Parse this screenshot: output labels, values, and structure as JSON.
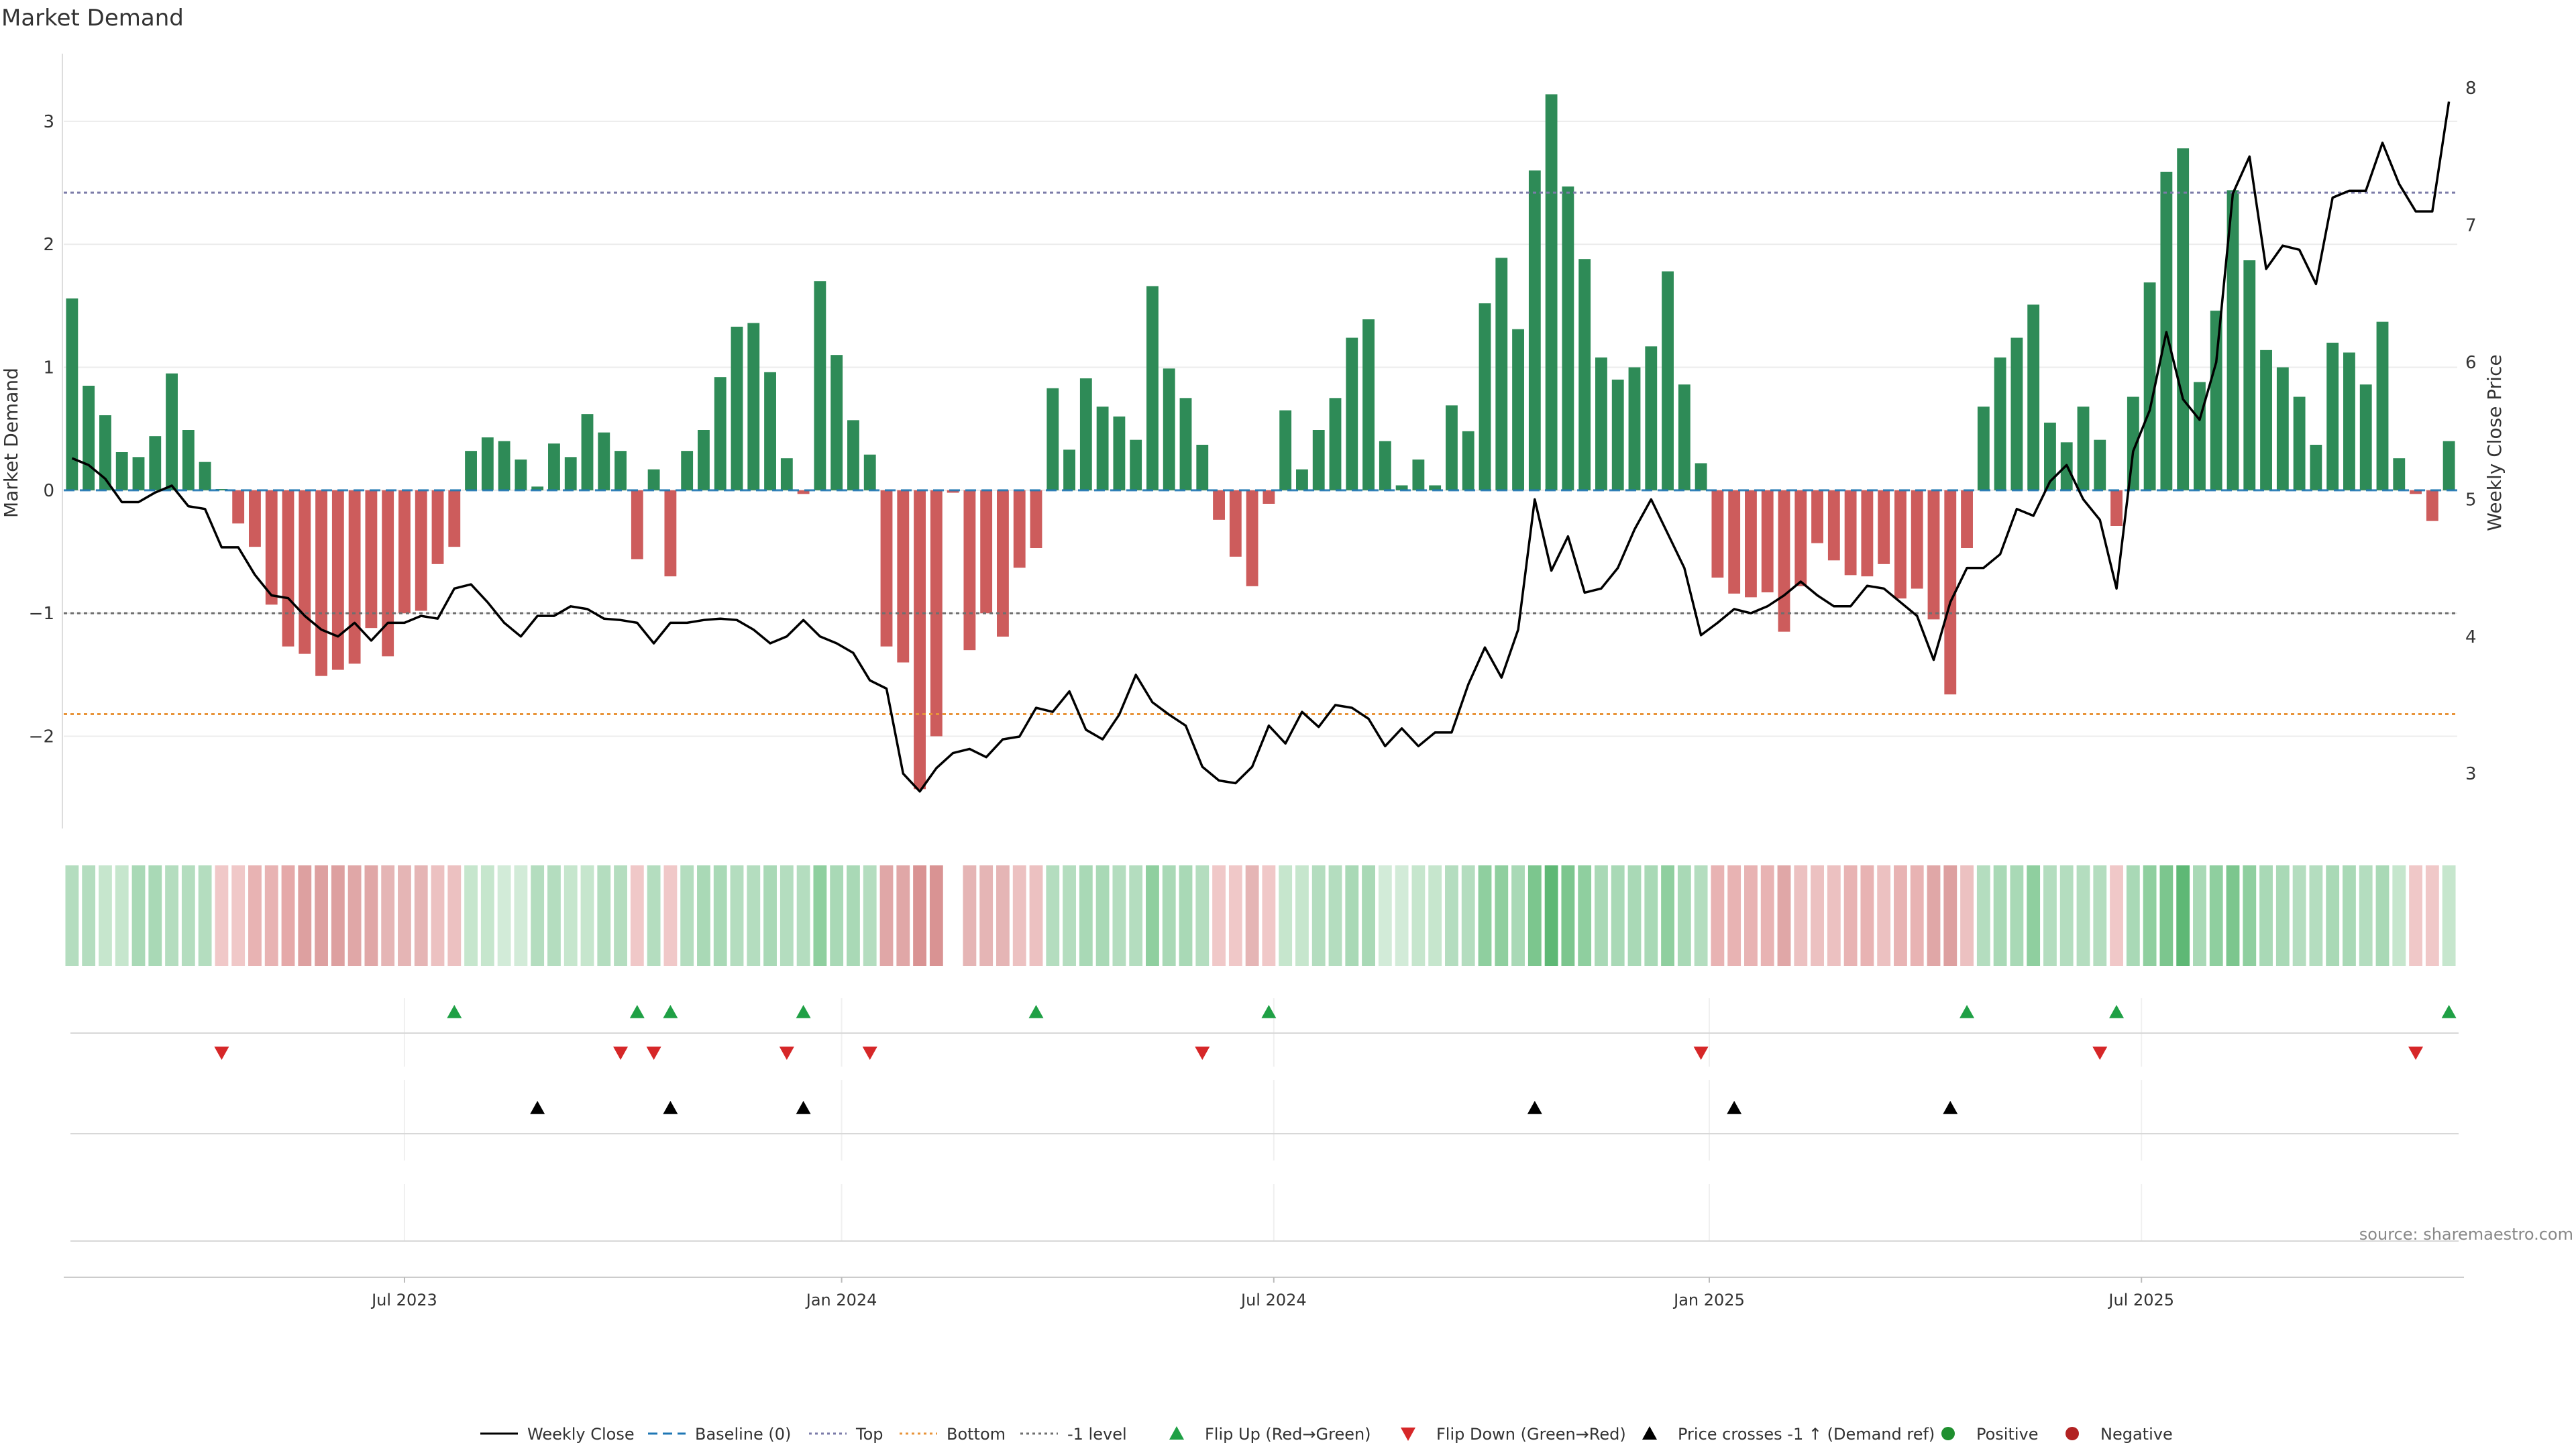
{
  "chart_data": {
    "type": "bar",
    "title": "Market Demand",
    "ylabel": "Market Demand",
    "y2label": "Weekly Close Price",
    "ylim": [
      -2.75,
      3.55
    ],
    "y2lim": [
      2.6,
      8.25
    ],
    "yticks": [
      3,
      2,
      1,
      0,
      -1,
      -2
    ],
    "ytick_labels": [
      "3",
      "2",
      "1",
      "0",
      "−1",
      "−2"
    ],
    "y2ticks": [
      8,
      7,
      6,
      5,
      4,
      3
    ],
    "y2tick_labels": [
      "8",
      "7",
      "6",
      "5",
      "4",
      "3"
    ],
    "x_start": "2023-02-01",
    "week_count": 144,
    "xticks": [
      {
        "label": "Jul 2023",
        "index": 20
      },
      {
        "label": "Jan 2024",
        "index": 46.3
      },
      {
        "label": "Jul 2024",
        "index": 72.3
      },
      {
        "label": "Jan 2025",
        "index": 98.5
      },
      {
        "label": "Jul 2025",
        "index": 124.5
      }
    ],
    "reference_lines": [
      {
        "name": "Top",
        "value": 2.42,
        "color": "#7b7ba8"
      },
      {
        "name": "-1 level",
        "value": -1.0,
        "color": "#6e6e6e"
      },
      {
        "name": "Bottom",
        "value": -1.82,
        "color": "#e8943a"
      }
    ],
    "series": [
      {
        "name": "Market Demand",
        "values": [
          1.56,
          0.85,
          0.61,
          0.31,
          0.27,
          0.44,
          0.95,
          0.49,
          0.23,
          0.01,
          -0.27,
          -0.46,
          -0.93,
          -1.27,
          -1.33,
          -1.51,
          -1.46,
          -1.41,
          -1.12,
          -1.35,
          -1.0,
          -0.98,
          -0.6,
          -0.46,
          0.32,
          0.43,
          0.4,
          0.25,
          0.03,
          0.38,
          0.27,
          0.62,
          0.47,
          0.32,
          -0.56,
          0.17,
          -0.7,
          0.32,
          0.49,
          0.92,
          1.33,
          1.36,
          0.96,
          0.26,
          -0.03,
          1.7,
          1.1,
          0.57,
          0.29,
          -1.27,
          -1.4,
          -2.43,
          -2.0,
          -0.02,
          -1.3,
          -1.0,
          -1.19,
          -0.63,
          -0.47,
          0.83,
          0.33,
          0.91,
          0.68,
          0.6,
          0.41,
          1.66,
          0.99,
          0.75,
          0.37,
          -0.24,
          -0.54,
          -0.78,
          -0.11,
          0.65,
          0.17,
          0.49,
          0.75,
          1.24,
          1.39,
          0.4,
          0.04,
          0.25,
          0.04,
          0.69,
          0.48,
          1.52,
          1.89,
          1.31,
          2.6,
          3.22,
          2.47,
          1.88,
          1.08,
          0.9,
          1.0,
          1.17,
          1.78,
          0.86,
          0.22,
          -0.71,
          -0.84,
          -0.87,
          -0.83,
          -1.15,
          -0.78,
          -0.43,
          -0.57,
          -0.69,
          -0.7,
          -0.6,
          -0.88,
          -0.8,
          -1.05,
          -1.66,
          -0.47,
          0.68,
          1.08,
          1.24,
          1.51,
          0.55,
          0.39,
          0.68,
          0.41,
          -0.29,
          0.76,
          1.69,
          2.59,
          2.78,
          0.88,
          1.46,
          2.44,
          1.87,
          1.14,
          1.0,
          0.76,
          0.37,
          1.2,
          1.12,
          0.86,
          1.37,
          0.26,
          -0.03,
          -0.25,
          0.4
        ]
      },
      {
        "name": "Weekly Close",
        "values": [
          5.3,
          5.25,
          5.15,
          4.98,
          4.98,
          5.05,
          5.1,
          4.95,
          4.93,
          4.65,
          4.65,
          4.45,
          4.3,
          4.28,
          4.15,
          4.05,
          4.0,
          4.1,
          3.97,
          4.1,
          4.1,
          4.15,
          4.13,
          4.35,
          4.38,
          4.25,
          4.1,
          4.0,
          4.15,
          4.15,
          4.22,
          4.2,
          4.13,
          4.12,
          4.1,
          3.95,
          4.1,
          4.1,
          4.12,
          4.13,
          4.12,
          4.05,
          3.95,
          4.0,
          4.12,
          4.0,
          3.95,
          3.88,
          3.68,
          3.62,
          3.0,
          2.87,
          3.04,
          3.15,
          3.18,
          3.12,
          3.25,
          3.27,
          3.48,
          3.45,
          3.6,
          3.32,
          3.25,
          3.43,
          3.72,
          3.52,
          3.43,
          3.35,
          3.05,
          2.95,
          2.93,
          3.05,
          3.35,
          3.22,
          3.45,
          3.34,
          3.5,
          3.48,
          3.4,
          3.2,
          3.33,
          3.2,
          3.3,
          3.3,
          3.65,
          3.92,
          3.7,
          4.05,
          5.0,
          4.48,
          4.73,
          4.32,
          4.35,
          4.5,
          4.78,
          5.0,
          4.75,
          4.5,
          4.01,
          4.1,
          4.2,
          4.17,
          4.22,
          4.3,
          4.4,
          4.3,
          4.22,
          4.22,
          4.37,
          4.35,
          4.25,
          4.15,
          3.83,
          4.25,
          4.5,
          4.5,
          4.6,
          4.93,
          4.88,
          5.13,
          5.25,
          5.0,
          4.85,
          4.35,
          5.35,
          5.65,
          6.22,
          5.73,
          5.58,
          6.0,
          7.23,
          7.5,
          6.68,
          6.85,
          6.82,
          6.57,
          7.2,
          7.25,
          7.25,
          7.6,
          7.3,
          7.1,
          7.1,
          7.9
        ]
      }
    ],
    "strip_colors": [
      "#b4ddbf",
      "#b4ddbf",
      "#c6e6cd",
      "#c6e6cd",
      "#a9d9b6",
      "#a9d9b6",
      "#b4ddbf",
      "#b4ddbf",
      "#b4ddbf",
      "#f0c8c8",
      "#f0c8c8",
      "#e8b3b3",
      "#e8b3b3",
      "#e5a9a9",
      "#dda0a0",
      "#dda0a0",
      "#dda0a0",
      "#e0a7a7",
      "#e0a7a7",
      "#e5b5b5",
      "#e5b5b5",
      "#e5b5b5",
      "#ecc1c1",
      "#ecc1c1",
      "#c6e6cd",
      "#c6e6cd",
      "#d2ebd8",
      "#d2ebd8",
      "#b4ddbf",
      "#b4ddbf",
      "#c6e6cd",
      "#c6e6cd",
      "#b4ddbf",
      "#b4ddbf",
      "#f0c8c8",
      "#b4ddbf",
      "#f0c8c8",
      "#b4ddbf",
      "#a9d9b6",
      "#a9d9b6",
      "#b4ddbf",
      "#b4ddbf",
      "#a9d9b6",
      "#b4ddbf",
      "#b4ddbf",
      "#8fcf9f",
      "#a9d9b6",
      "#a9d9b6",
      "#b4ddbf",
      "#e0a7a7",
      "#e0a7a7",
      "#d99393",
      "#d99393",
      "#ffffff",
      "#e5b5b5",
      "#e5b5b5",
      "#e5b5b5",
      "#ecc1c1",
      "#ecc1c1",
      "#b4ddbf",
      "#b4ddbf",
      "#a9d9b6",
      "#a9d9b6",
      "#b4ddbf",
      "#b4ddbf",
      "#8fcf9f",
      "#a9d9b6",
      "#a9d9b6",
      "#b4ddbf",
      "#f0c8c8",
      "#f0c8c8",
      "#e5b5b5",
      "#f0c8c8",
      "#c6e6cd",
      "#c6e6cd",
      "#b4ddbf",
      "#b4ddbf",
      "#a9d9b6",
      "#a9d9b6",
      "#d2ebd8",
      "#d2ebd8",
      "#c6e6cd",
      "#c6e6cd",
      "#b4ddbf",
      "#b4ddbf",
      "#8fcf9f",
      "#8fcf9f",
      "#a9d9b6",
      "#7cc68e",
      "#5eb875",
      "#7cc68e",
      "#8fcf9f",
      "#a9d9b6",
      "#a9d9b6",
      "#a9d9b6",
      "#a9d9b6",
      "#8fcf9f",
      "#a9d9b6",
      "#b4ddbf",
      "#e8b3b3",
      "#e8b3b3",
      "#e8b3b3",
      "#e8b3b3",
      "#e0a7a7",
      "#ecc1c1",
      "#ecc1c1",
      "#ecc1c1",
      "#e8b3b3",
      "#e8b3b3",
      "#ecc1c1",
      "#e8b3b3",
      "#e8b3b3",
      "#e0a7a7",
      "#dda0a0",
      "#ecc1c1",
      "#b4ddbf",
      "#a9d9b6",
      "#a9d9b6",
      "#8fcf9f",
      "#b4ddbf",
      "#b4ddbf",
      "#b4ddbf",
      "#b4ddbf",
      "#f0c8c8",
      "#a9d9b6",
      "#8fcf9f",
      "#7cc68e",
      "#5eb875",
      "#a9d9b6",
      "#8fcf9f",
      "#7cc68e",
      "#8fcf9f",
      "#a9d9b6",
      "#a9d9b6",
      "#b4ddbf",
      "#b4ddbf",
      "#a9d9b6",
      "#a9d9b6",
      "#b4ddbf",
      "#a9d9b6",
      "#c6e6cd",
      "#f0c8c8",
      "#f0c8c8",
      "#c6e6cd"
    ],
    "markers": {
      "flip_up": [
        23,
        34,
        36,
        44,
        58,
        72,
        114,
        123,
        143
      ],
      "flip_down": [
        9,
        33,
        35,
        43,
        48,
        68,
        98,
        122,
        141
      ],
      "price_cross": [
        28,
        36,
        44,
        88,
        100,
        113
      ]
    },
    "colors": {
      "positive": "#2e8b57",
      "negative": "#cd5c5c",
      "weekly_close": "#000000",
      "baseline": "#1f77b4",
      "flip_up": "#1fa045",
      "flip_down": "#d62728",
      "price_cross": "#000000",
      "legend_positive": "#1f8f2f",
      "legend_negative": "#b22222"
    },
    "legend": [
      {
        "label": "Weekly Close",
        "type": "solid-line",
        "color": "#000000"
      },
      {
        "label": "Baseline (0)",
        "type": "dashed-line",
        "color": "#1f77b4"
      },
      {
        "label": "Top",
        "type": "dotted-line",
        "color": "#7b7ba8"
      },
      {
        "label": "Bottom",
        "type": "dotted-line",
        "color": "#e8943a"
      },
      {
        "label": "-1 level",
        "type": "dotted-line",
        "color": "#6e6e6e"
      },
      {
        "label": "Flip Up (Red→Green)",
        "type": "triangle-up",
        "color": "#1fa045"
      },
      {
        "label": "Flip Down (Green→Red)",
        "type": "triangle-down",
        "color": "#d62728"
      },
      {
        "label": "Price crosses -1 ↑ (Demand ref)",
        "type": "triangle-up",
        "color": "#000000"
      },
      {
        "label": "Positive",
        "type": "circle",
        "color": "#1f8f2f"
      },
      {
        "label": "Negative",
        "type": "circle",
        "color": "#b22222"
      }
    ],
    "annotation": "source: sharemaestro.com"
  }
}
